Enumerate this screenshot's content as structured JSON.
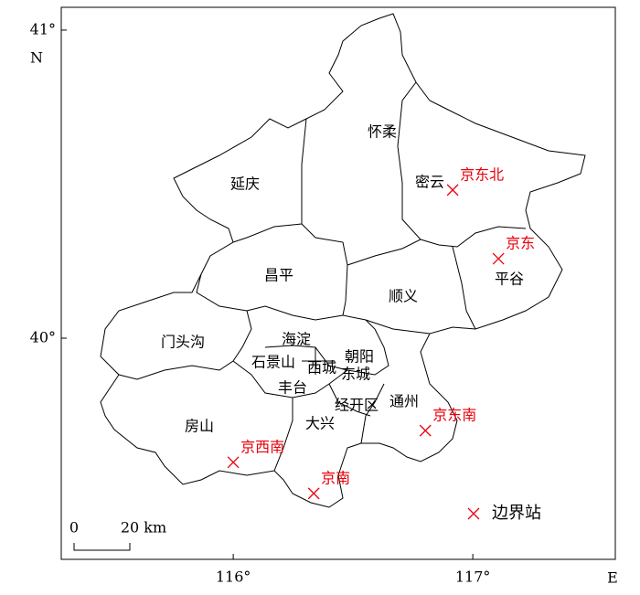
{
  "chart_data": {
    "type": "map",
    "xlabel": "E",
    "ylabel": "N",
    "xlim": [
      115.282,
      117.595
    ],
    "ylim": [
      39.282,
      41.074
    ],
    "xticks": [
      {
        "value": 116,
        "label": "116°"
      },
      {
        "value": 117,
        "label": "117°"
      }
    ],
    "yticks": [
      {
        "value": 40,
        "label": "40°"
      },
      {
        "value": 41,
        "label": "41°"
      }
    ],
    "districts": [
      "怀柔",
      "延庆",
      "密云",
      "昌平",
      "平谷",
      "顺义",
      "门头沟",
      "海淀",
      "朝阳",
      "石景山",
      "西城",
      "东城",
      "丰台",
      "经开区",
      "通州",
      "房山",
      "大兴"
    ],
    "stations": {
      "color": "#e8000b",
      "names": [
        "京东北",
        "京东",
        "京东南",
        "京南",
        "京西南"
      ],
      "lon": [
        116.916,
        117.107,
        116.802,
        116.336,
        116.0
      ],
      "lat": [
        40.481,
        40.258,
        39.7,
        39.496,
        39.597
      ]
    },
    "legend": "边界站",
    "scale_bar": [
      "0",
      "20 km"
    ]
  }
}
